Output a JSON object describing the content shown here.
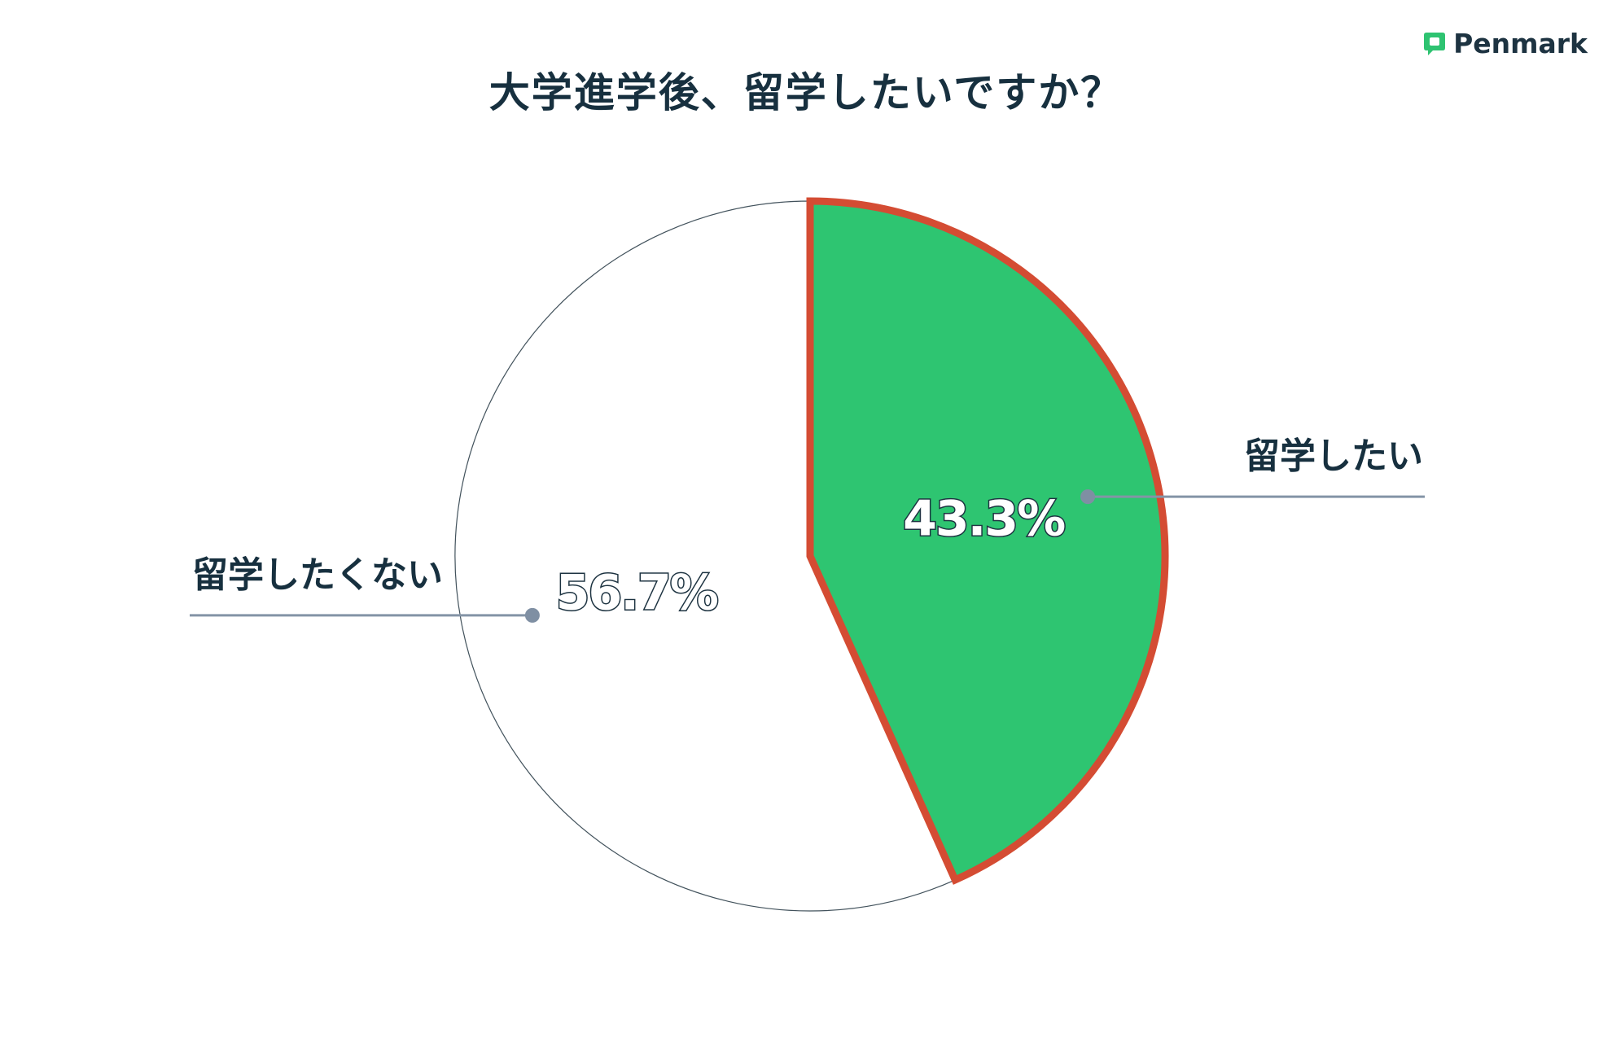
{
  "brand": {
    "name": "Penmark",
    "icon": "speech-bubble-p-icon",
    "color": "#2ec371"
  },
  "chart_data": {
    "type": "pie",
    "title": "大学進学後、留学したいですか？",
    "slices": [
      {
        "label": "留学したい",
        "value": 43.3,
        "value_label": "43.3%",
        "color": "#2ec571",
        "outline": "#d44c33",
        "highlighted": true
      },
      {
        "label": "留学したくない",
        "value": 56.7,
        "value_label": "56.7%",
        "color": "#ffffff",
        "outline": "#42525c",
        "highlighted": false
      }
    ],
    "start_angle": "12-o-clock",
    "direction": "clockwise",
    "legend": "callout-labels"
  }
}
